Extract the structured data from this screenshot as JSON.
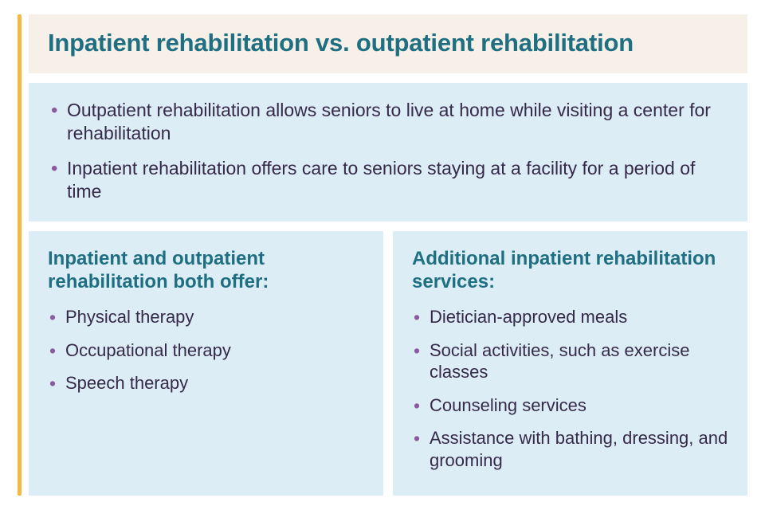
{
  "colors": {
    "accent_bar": "#f4b942",
    "title_bg": "#f6f0e9",
    "title_text": "#1f6f82",
    "panel_bg": "#dcedf6",
    "body_text": "#362a4a",
    "bullet": "#8a5a9e",
    "col_heading": "#1f6f82"
  },
  "title": "Inpatient rehabilitation vs. outpatient rehabilitation",
  "intro": {
    "items": [
      "Outpatient rehabilitation allows seniors to live at home while visiting a center for rehabilitation",
      "Inpatient rehabilitation offers care to seniors staying at a facility for a period of time"
    ]
  },
  "left": {
    "heading": "Inpatient and outpatient rehabilitation both offer:",
    "items": [
      "Physical therapy",
      "Occupational therapy",
      "Speech therapy"
    ]
  },
  "right": {
    "heading": "Additional inpatient rehabilitation services:",
    "items": [
      "Dietician-approved meals",
      "Social activities, such as exercise classes",
      "Counseling services",
      "Assistance with bathing, dressing, and grooming"
    ]
  },
  "typography": {
    "title_fontsize": 31,
    "intro_fontsize": 23,
    "col_heading_fontsize": 24,
    "col_item_fontsize": 22
  }
}
